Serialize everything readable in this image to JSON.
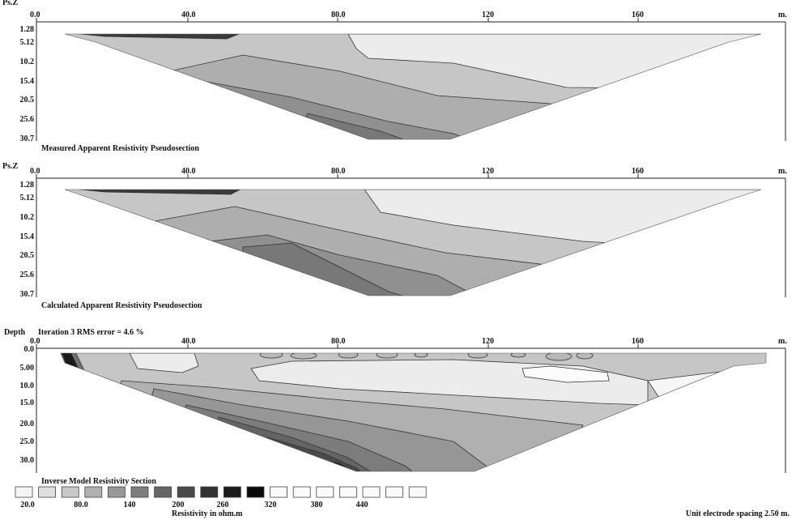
{
  "panels": [
    {
      "depth_label": "Ps.Z",
      "header_text": "",
      "x_ticks": [
        "0.0",
        "40.0",
        "80.0",
        "120",
        "160"
      ],
      "x_unit": "m.",
      "y_ticks": [
        "1.28",
        "5.12",
        "10.2",
        "15.4",
        "20.5",
        "25.6",
        "30.7"
      ],
      "caption": "Measured Apparent Resistivity Pseudosection"
    },
    {
      "depth_label": "Ps.Z",
      "header_text": "",
      "x_ticks": [
        "0.0",
        "40.0",
        "80.0",
        "120",
        "160"
      ],
      "x_unit": "m.",
      "y_ticks": [
        "1.28",
        "5.12",
        "10.2",
        "15.4",
        "20.5",
        "25.6",
        "30.7"
      ],
      "caption": "Calculated Apparent Resistivity Pseudosection"
    },
    {
      "depth_label": "Depth",
      "header_text": "Iteration 3 RMS error = 4.6 %",
      "x_ticks": [
        "0.0",
        "40.0",
        "80.0",
        "120",
        "160"
      ],
      "x_unit": "m.",
      "y_ticks": [
        "0.0",
        "5.00",
        "10.0",
        "15.0",
        "20.0",
        "25.0",
        "30.0"
      ],
      "caption": "Inverse Model Resistivity Section"
    }
  ],
  "legend": {
    "values": [
      "20.0",
      "80.0",
      "140",
      "200",
      "260",
      "320",
      "380",
      "440"
    ],
    "title": "Resistivity in ohm.m",
    "colors": [
      "#f4f4f4",
      "#dedede",
      "#c8c8c8",
      "#b0b0b0",
      "#989898",
      "#7e7e7e",
      "#666666",
      "#4a4a4a",
      "#323232",
      "#1c1c1c",
      "#0a0a0a",
      "#fafafa",
      "#fafafa",
      "#fafafa",
      "#fafafa",
      "#fafafa",
      "#fafafa",
      "#fafafa"
    ]
  },
  "footer_note": "Unit electrode spacing 2.50 m.",
  "chart_data": [
    {
      "type": "heatmap",
      "title": "Measured Apparent Resistivity Pseudosection",
      "xlabel": "m.",
      "ylabel": "Ps.Z",
      "xlim": [
        0,
        200
      ],
      "ylim": [
        30.7,
        1.28
      ],
      "x_tick_values": [
        0,
        40,
        80,
        120,
        160
      ],
      "y_tick_values": [
        1.28,
        5.12,
        10.2,
        15.4,
        20.5,
        25.6,
        30.7
      ]
    },
    {
      "type": "heatmap",
      "title": "Calculated Apparent Resistivity Pseudosection",
      "xlabel": "m.",
      "ylabel": "Ps.Z",
      "xlim": [
        0,
        200
      ],
      "ylim": [
        30.7,
        1.28
      ],
      "x_tick_values": [
        0,
        40,
        80,
        120,
        160
      ],
      "y_tick_values": [
        1.28,
        5.12,
        10.2,
        15.4,
        20.5,
        25.6,
        30.7
      ]
    },
    {
      "type": "heatmap",
      "title": "Inverse Model Resistivity Section",
      "subtitle": "Iteration 3 RMS error = 4.6 %",
      "xlabel": "m.",
      "ylabel": "Depth",
      "xlim": [
        0,
        200
      ],
      "ylim": [
        32,
        0
      ],
      "x_tick_values": [
        0,
        40,
        80,
        120,
        160
      ],
      "y_tick_values": [
        0,
        5,
        10,
        15,
        20,
        25,
        30
      ],
      "colorbar": {
        "values": [
          20,
          80,
          140,
          200,
          260,
          320,
          380,
          440
        ],
        "label": "Resistivity in ohm.m"
      }
    }
  ]
}
